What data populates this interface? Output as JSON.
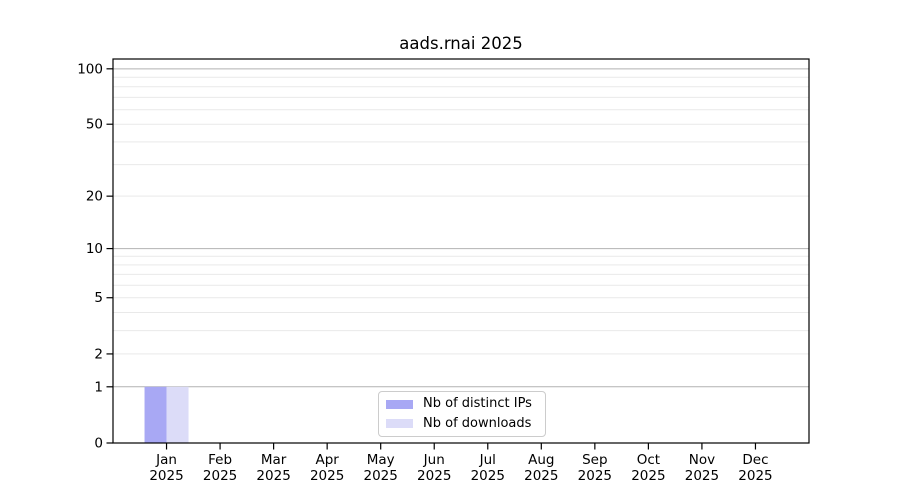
{
  "chart_data": {
    "type": "bar",
    "title": "aads.rnai 2025",
    "xlabel": "",
    "ylabel": "",
    "categories": [
      "Jan 2025",
      "Feb 2025",
      "Mar 2025",
      "Apr 2025",
      "May 2025",
      "Jun 2025",
      "Jul 2025",
      "Aug 2025",
      "Sep 2025",
      "Oct 2025",
      "Nov 2025",
      "Dec 2025"
    ],
    "series": [
      {
        "name": "Nb of distinct IPs",
        "color": "#a8a8f4",
        "values": [
          1,
          0,
          0,
          0,
          0,
          0,
          0,
          0,
          0,
          0,
          0,
          0
        ]
      },
      {
        "name": "Nb of downloads",
        "color": "#dcdcf8",
        "values": [
          1,
          0,
          0,
          0,
          0,
          0,
          0,
          0,
          0,
          0,
          0,
          0
        ]
      }
    ],
    "y_scale": "log1p",
    "ylim": [
      0,
      113
    ],
    "y_ticks": [
      0,
      1,
      2,
      5,
      10,
      20,
      50,
      100
    ],
    "grid_major": [
      1,
      10,
      100
    ],
    "grid_minor": [
      2,
      3,
      4,
      5,
      6,
      7,
      8,
      9,
      20,
      30,
      40,
      50,
      60,
      70,
      80,
      90
    ],
    "grid": true,
    "legend_position": "lower center",
    "colors": {
      "axis": "#000000",
      "text": "#000000",
      "grid_major": "#b2b2b2",
      "grid_minor": "#e9e9e9",
      "background": "#ffffff",
      "legend_border": "#cccccc"
    }
  }
}
